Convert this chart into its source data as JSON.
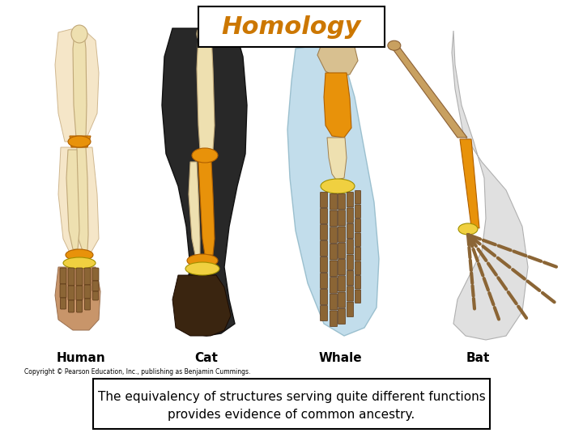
{
  "title": "Homology",
  "title_color": "#CC7700",
  "title_fontsize": 22,
  "title_fontstyle": "italic",
  "title_box_facecolor": "#ffffff",
  "title_box_edgecolor": "#000000",
  "labels": [
    "Human",
    "Cat",
    "Whale",
    "Bat"
  ],
  "label_fontsize": 11,
  "label_fontweight": "bold",
  "copyright_text": "Copyright © Pearson Education, Inc., publishing as Benjamin Cummings.",
  "copyright_fontsize": 5.5,
  "caption_line1": "The equivalency of structures serving quite different functions",
  "caption_line2": "provides evidence of common ancestry.",
  "caption_fontsize": 11,
  "caption_box_facecolor": "#ffffff",
  "caption_box_edgecolor": "#000000",
  "bg_color": "#ffffff",
  "skin_light": "#F5E6C8",
  "skin_mid": "#E8D0A0",
  "skin_dark": "#C8956A",
  "orange_bone": "#E8920A",
  "yellow_bone": "#F0D040",
  "bone_beige": "#EEE0B0",
  "bone_brown": "#8B6535",
  "dark_fur": "#282828",
  "blue_flipper": "#B8D8E8",
  "wing_gray": "#E0E0E0"
}
